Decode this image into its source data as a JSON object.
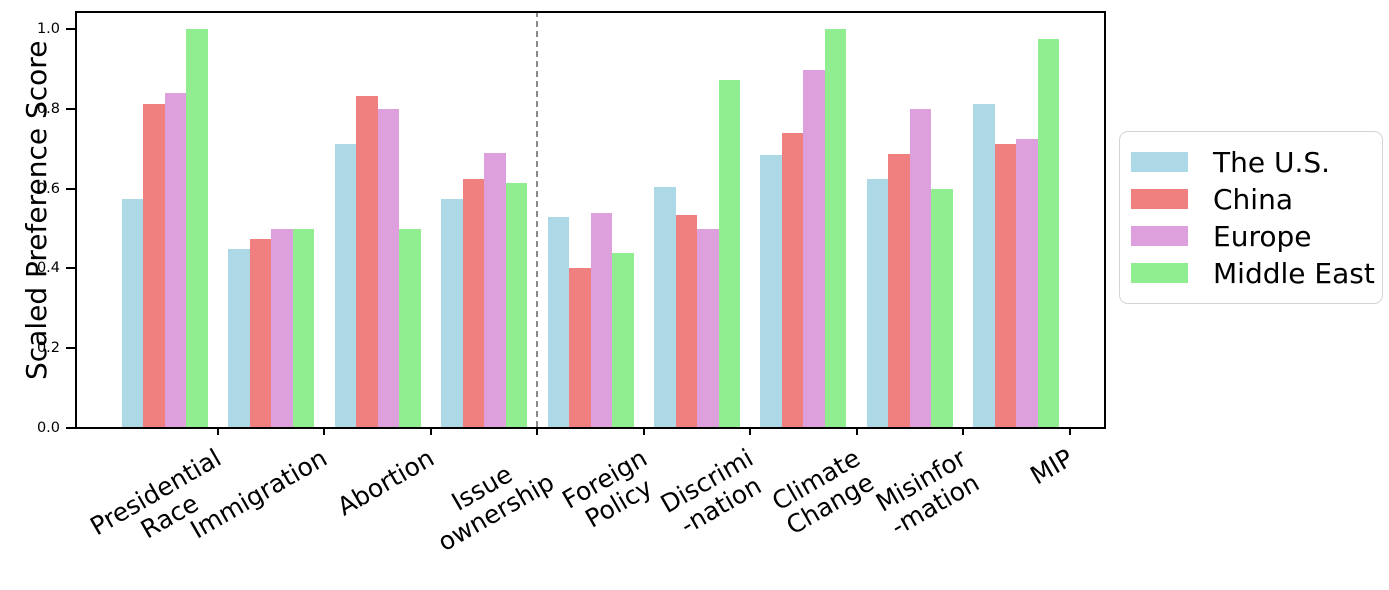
{
  "chart_data": {
    "type": "bar",
    "title": "",
    "xlabel": "",
    "ylabel": "Scaled Preference Score",
    "ylim": [
      0,
      1.045
    ],
    "yticks": [
      "0.0",
      "0.2",
      "0.4",
      "0.6",
      "0.8",
      "1.0"
    ],
    "grid": false,
    "legend_position": "right-outside",
    "categories": [
      "Presidential\nRace",
      "Immigration",
      "Abortion",
      "Issue\nownership",
      "Foreign\nPolicy",
      "Discrimi\n-nation",
      "Climate\nChange",
      "Misinfor\n-mation",
      "MIP"
    ],
    "series": [
      {
        "name": "The U.S.",
        "color": "#ADD8E6",
        "values": [
          0.575,
          0.448,
          0.713,
          0.575,
          0.53,
          0.603,
          0.683,
          0.625,
          0.813
        ]
      },
      {
        "name": "China",
        "color": "#F08080",
        "values": [
          0.813,
          0.473,
          0.833,
          0.623,
          0.4,
          0.535,
          0.74,
          0.688,
          0.713
        ]
      },
      {
        "name": "Europe",
        "color": "#DDA0DD",
        "values": [
          0.84,
          0.5,
          0.8,
          0.69,
          0.538,
          0.5,
          0.898,
          0.8,
          0.725
        ]
      },
      {
        "name": "Middle East",
        "color": "#90EE90",
        "values": [
          1.0,
          0.5,
          0.5,
          0.615,
          0.438,
          0.873,
          1.0,
          0.6,
          0.975
        ]
      }
    ],
    "separator": {
      "description": "vertical dashed divider between Issue ownership and Foreign Policy",
      "after_category_index": 3,
      "style": "dashed",
      "color": "#8a8a8a"
    }
  }
}
